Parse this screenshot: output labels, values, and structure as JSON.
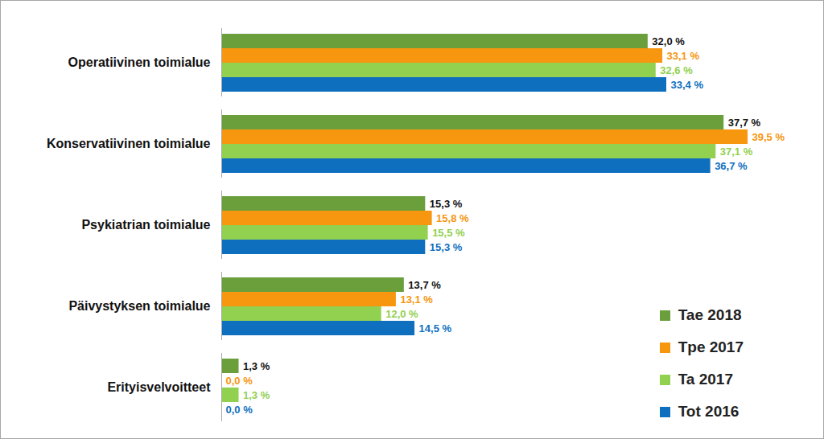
{
  "chart_data": {
    "type": "bar",
    "orientation": "horizontal",
    "data_labels": true,
    "tick_labels": "y",
    "legend": "lower right",
    "categories": [
      "Operatiivinen toimialue",
      "Konservatiivinen toimialue",
      "Psykiatrian toimialue",
      "Päivystyksen toimialue",
      "Erityisvelvoitteet"
    ],
    "series": [
      {
        "name": "Tae 2018",
        "color": "#6a9f3c",
        "values": [
          32.0,
          37.7,
          15.3,
          13.7,
          1.3
        ],
        "value_labels": [
          "32,0 %",
          "37,7 %",
          "15,3 %",
          "13,7 %",
          "1,3 %"
        ]
      },
      {
        "name": "Tpe 2017",
        "color": "#f7960f",
        "values": [
          33.1,
          39.5,
          15.8,
          13.1,
          0.0
        ],
        "value_labels": [
          "33,1 %",
          "39,5 %",
          "15,8 %",
          "13,1 %",
          "0,0 %"
        ]
      },
      {
        "name": "Ta 2017",
        "color": "#92d050",
        "values": [
          32.6,
          37.1,
          15.5,
          12.0,
          1.3
        ],
        "value_labels": [
          "32,6 %",
          "37,1 %",
          "15,5 %",
          "12,0 %",
          "1,3 %"
        ]
      },
      {
        "name": "Tot 2016",
        "color": "#0f6fbf",
        "values": [
          33.4,
          36.7,
          15.3,
          14.5,
          0.0
        ],
        "value_labels": [
          "33,4 %",
          "36,7 %",
          "15,3 %",
          "14,5 %",
          "0,0 %"
        ]
      }
    ]
  }
}
